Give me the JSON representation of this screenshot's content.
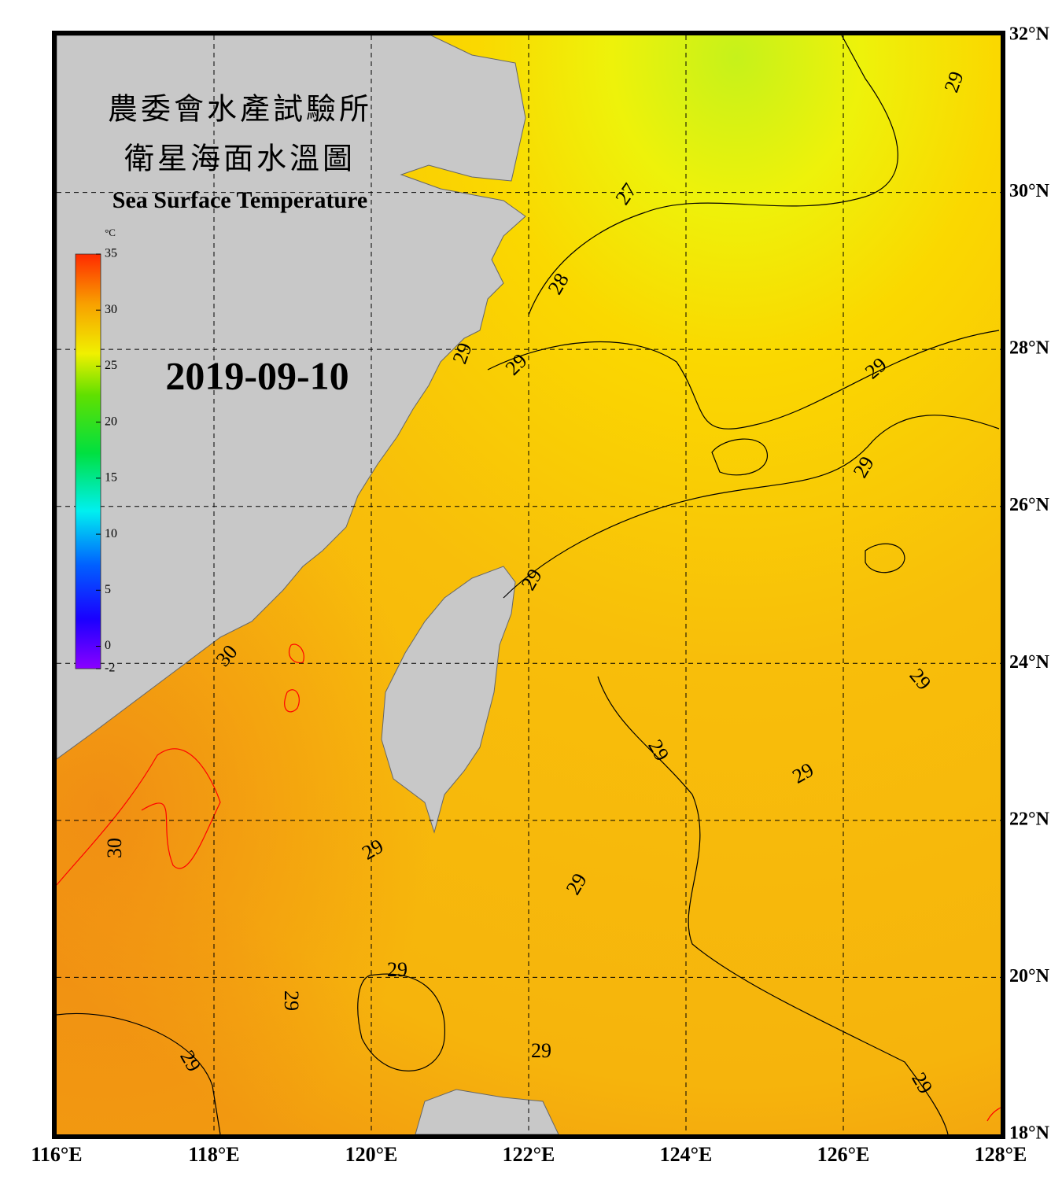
{
  "header": {
    "title_lines": [
      "農委會水產試驗所",
      "衛星海面水溫圖"
    ],
    "subtitle": "Sea Surface Temperature",
    "date": "2019-09-10"
  },
  "colorbar": {
    "unit": "°C",
    "range": [
      -2,
      35
    ],
    "ticks": [
      35,
      30,
      25,
      20,
      15,
      10,
      5,
      0,
      -2
    ]
  },
  "map": {
    "lon_range": [
      116,
      128
    ],
    "lat_range": [
      18,
      32
    ],
    "lon_ticks": [
      {
        "value": 116,
        "label": "116°E"
      },
      {
        "value": 118,
        "label": "118°E"
      },
      {
        "value": 120,
        "label": "120°E"
      },
      {
        "value": 122,
        "label": "122°E"
      },
      {
        "value": 124,
        "label": "124°E"
      },
      {
        "value": 126,
        "label": "126°E"
      },
      {
        "value": 128,
        "label": "128°E"
      }
    ],
    "lat_ticks": [
      {
        "value": 18,
        "label": "18°N"
      },
      {
        "value": 20,
        "label": "20°N"
      },
      {
        "value": 22,
        "label": "22°N"
      },
      {
        "value": 24,
        "label": "24°N"
      },
      {
        "value": 26,
        "label": "26°N"
      },
      {
        "value": 28,
        "label": "28°N"
      },
      {
        "value": 30,
        "label": "30°N"
      },
      {
        "value": 32,
        "label": "32°N"
      }
    ],
    "contour_labels": [
      {
        "value": 29,
        "color": "#000000"
      },
      {
        "value": 27,
        "color": "#000000"
      },
      {
        "value": 28,
        "color": "#000000"
      },
      {
        "value": 29,
        "color": "#000000"
      },
      {
        "value": 29,
        "color": "#000000"
      },
      {
        "value": 29,
        "color": "#000000"
      },
      {
        "value": 29,
        "color": "#000000"
      },
      {
        "value": 29,
        "color": "#000000"
      },
      {
        "value": 30,
        "color": "#ff0000"
      },
      {
        "value": 29,
        "color": "#000000"
      },
      {
        "value": 29,
        "color": "#000000"
      },
      {
        "value": 29,
        "color": "#000000"
      },
      {
        "value": 30,
        "color": "#ff0000"
      },
      {
        "value": 29,
        "color": "#000000"
      },
      {
        "value": 29,
        "color": "#000000"
      },
      {
        "value": 29,
        "color": "#000000"
      },
      {
        "value": 29,
        "color": "#000000"
      },
      {
        "value": 29,
        "color": "#000000"
      },
      {
        "value": 29,
        "color": "#000000"
      },
      {
        "value": 29,
        "color": "#000000"
      }
    ]
  }
}
